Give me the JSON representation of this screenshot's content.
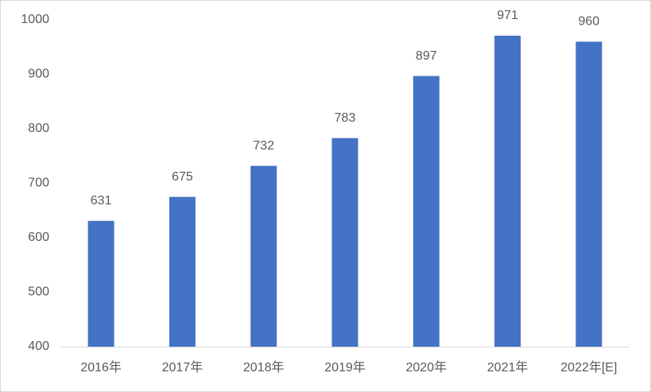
{
  "chart_data": {
    "type": "bar",
    "categories": [
      "2016年",
      "2017年",
      "2018年",
      "2019年",
      "2020年",
      "2021年",
      "2022年[E]"
    ],
    "values": [
      631,
      675,
      732,
      783,
      897,
      971,
      960
    ],
    "color": "#4472c4",
    "ylim": [
      400,
      1000
    ],
    "yticks": [
      400,
      500,
      600,
      700,
      800,
      900,
      1000
    ],
    "grid": false
  }
}
